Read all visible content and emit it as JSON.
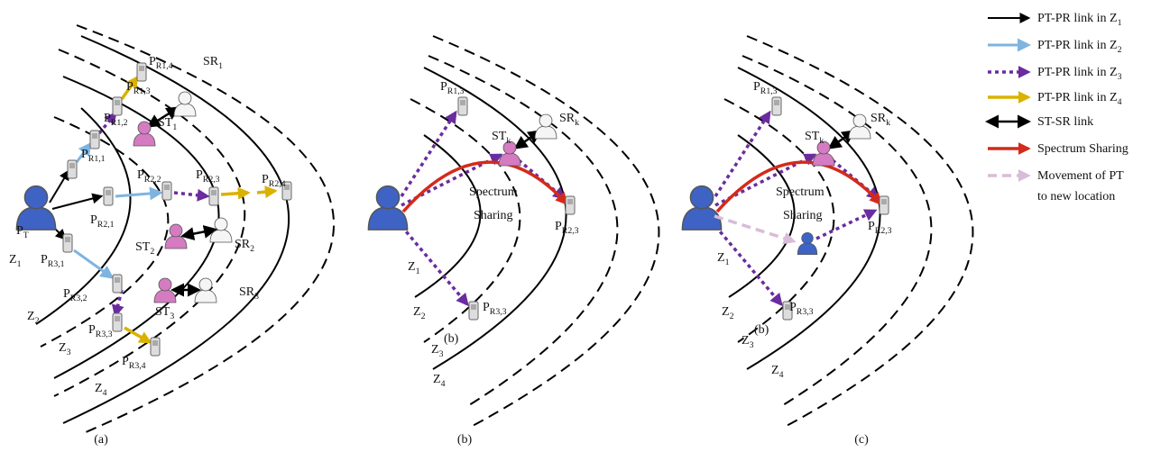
{
  "panels": [
    {
      "caption": "(a)",
      "labels": [
        {
          "base": "P",
          "sub": "R1,4"
        },
        {
          "base": "SR",
          "sub": "1"
        },
        {
          "base": "P",
          "sub": "R1,3"
        },
        {
          "base": "P",
          "sub": "R1,2"
        },
        {
          "base": "ST",
          "sub": "1"
        },
        {
          "base": "P",
          "sub": "R1,1"
        },
        {
          "base": "P",
          "sub": "R2,2"
        },
        {
          "base": "P",
          "sub": "R2,3"
        },
        {
          "base": "P",
          "sub": "R2,4"
        },
        {
          "base": "P",
          "sub": "T"
        },
        {
          "base": "P",
          "sub": "R2,1"
        },
        {
          "base": "ST",
          "sub": "2"
        },
        {
          "base": "SR",
          "sub": "2"
        },
        {
          "base": "Z",
          "sub": "1"
        },
        {
          "base": "P",
          "sub": "R3,1"
        },
        {
          "base": "P",
          "sub": "R3,2"
        },
        {
          "base": "SR",
          "sub": "3"
        },
        {
          "base": "ST",
          "sub": "3"
        },
        {
          "base": "Z",
          "sub": "2"
        },
        {
          "base": "P",
          "sub": "R3,3"
        },
        {
          "base": "Z",
          "sub": "3"
        },
        {
          "base": "P",
          "sub": "R3,4"
        },
        {
          "base": "Z",
          "sub": "4"
        }
      ]
    },
    {
      "caption": "(b)",
      "labels": [
        {
          "base": "P",
          "sub": "R1,3"
        },
        {
          "base": "SR",
          "sub": "k"
        },
        {
          "base": "ST",
          "sub": "k"
        },
        {
          "base": "Spectrum"
        },
        {
          "base": "Sharing"
        },
        {
          "base": "P",
          "sub": "R2,3"
        },
        {
          "base": "Z",
          "sub": "1"
        },
        {
          "base": "P",
          "sub": "R3,3"
        },
        {
          "base": "Z",
          "sub": "2"
        },
        {
          "base": "Z",
          "sub": "3"
        },
        {
          "base": "(b)"
        },
        {
          "base": "Z",
          "sub": "4"
        }
      ]
    },
    {
      "caption": "(c)",
      "labels": [
        {
          "base": "P",
          "sub": "R1,3"
        },
        {
          "base": "SR",
          "sub": "k"
        },
        {
          "base": "ST",
          "sub": "k"
        },
        {
          "base": "Spectrum"
        },
        {
          "base": "Sharing"
        },
        {
          "base": "P",
          "sub": "R2,3"
        },
        {
          "base": "Z",
          "sub": "1"
        },
        {
          "base": "P",
          "sub": "R3,3"
        },
        {
          "base": "Z",
          "sub": "2"
        },
        {
          "base": "Z",
          "sub": "3"
        },
        {
          "base": "(b)"
        },
        {
          "base": "Z",
          "sub": "4"
        }
      ]
    }
  ],
  "legend": [
    {
      "base": "PT-PR link in Z",
      "sub": "1"
    },
    {
      "base": "PT-PR link in Z",
      "sub": "2"
    },
    {
      "base": "PT-PR link in Z",
      "sub": "3"
    },
    {
      "base": "PT-PR link in Z",
      "sub": "4"
    },
    {
      "base": "ST-SR link"
    },
    {
      "base": "Spectrum Sharing"
    },
    {
      "base": "Movement of PT"
    },
    {
      "base": "to new location"
    }
  ]
}
